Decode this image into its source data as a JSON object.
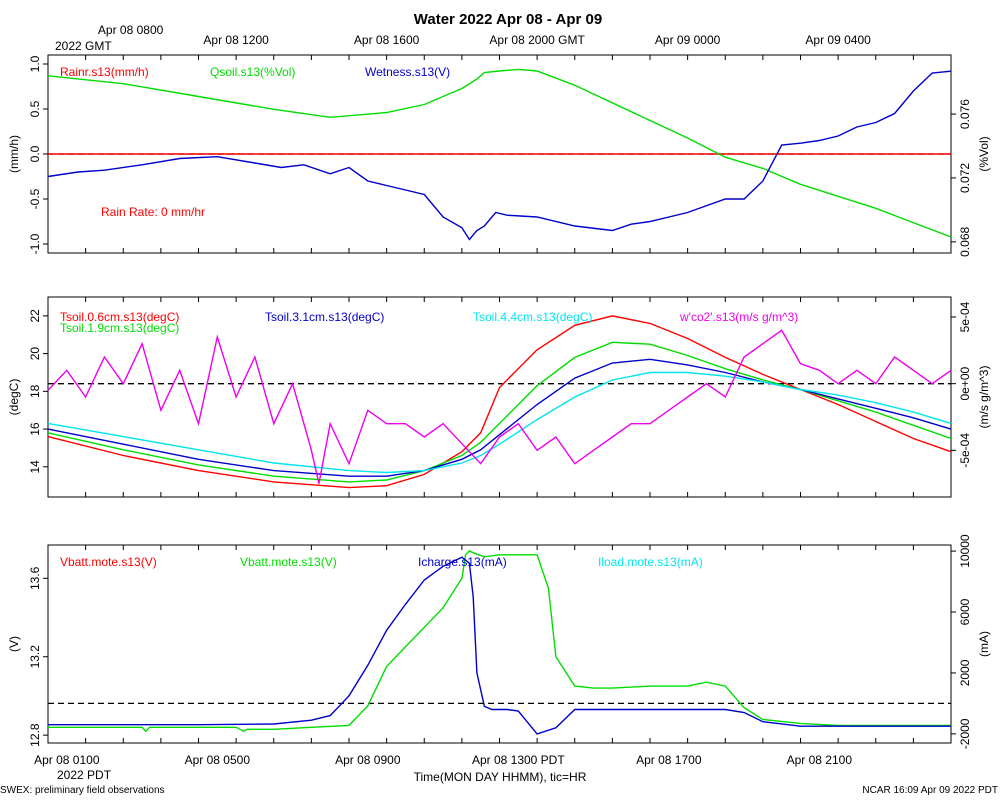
{
  "title": "Water 2022 Apr 08 - Apr 09",
  "top_time_labels": [
    "Apr 08 0800",
    "Apr 08 1200",
    "Apr 08 1600",
    "Apr 08 2000 GMT",
    "Apr 09 0000",
    "Apr 09 0400"
  ],
  "top_time_sub": "2022 GMT",
  "bottom_time_labels": [
    "Apr 08 0100",
    "Apr 08 0500",
    "Apr 08 0900",
    "Apr 08 1300 PDT",
    "Apr 08 1700",
    "Apr 08 2100"
  ],
  "bottom_time_sub": "2022 PDT",
  "xlabel": "Time(MON DAY HHMM), tic=HR",
  "footer_left": "SWEX: preliminary field observations",
  "footer_right": "NCAR 16:09 Apr 09 2022 PDT",
  "colors": {
    "red": "#ff0000",
    "green": "#00dd00",
    "blue": "#0000cc",
    "cyan": "#00e5ee",
    "magenta": "#ee00ee"
  },
  "chart_data": [
    {
      "type": "line",
      "panel": "water",
      "x_unit": "hours since Apr 08 0000 PDT",
      "xlim": [
        0,
        24
      ],
      "ylabel_left": "(mm/h)",
      "ylabel_right": "(%Vol)",
      "ylim_left": [
        -1.1,
        1.1
      ],
      "ylim_right": [
        0.0673,
        0.0797
      ],
      "yticks_left": [
        "1.0",
        "0.5",
        "0.0",
        "-0.5",
        "-1.0"
      ],
      "yticks_left_values": [
        1.0,
        0.5,
        0.0,
        -0.5,
        -1.0
      ],
      "yticks_right": [
        "0.076",
        "0.072",
        "0.068"
      ],
      "yticks_right_values": [
        0.076,
        0.072,
        0.068
      ],
      "annotation": "Rain Rate: 0 mm/hr",
      "series": [
        {
          "name": "Rainr.s13(mm/h)",
          "color": "red",
          "axis": "left",
          "x": [
            0,
            24
          ],
          "y": [
            0,
            0
          ]
        },
        {
          "name": "Qsoil.s13(%Vol)",
          "color": "green",
          "axis": "right",
          "x": [
            0,
            2,
            4,
            6,
            7.5,
            9,
            10,
            11,
            11.4,
            11.6,
            12,
            12.5,
            13,
            14,
            16,
            17,
            18,
            19,
            20,
            22,
            24
          ],
          "y": [
            0.0784,
            0.0779,
            0.0771,
            0.0763,
            0.0758,
            0.0761,
            0.0766,
            0.0776,
            0.0782,
            0.0786,
            0.0787,
            0.0788,
            0.0787,
            0.0778,
            0.0756,
            0.0745,
            0.0733,
            0.0726,
            0.0716,
            0.0701,
            0.0683
          ]
        },
        {
          "name": "Wetness.s13(V)",
          "color": "blue",
          "axis": "left",
          "x": [
            0,
            0.8,
            1.5,
            2.5,
            3.5,
            4.5,
            5.5,
            6.2,
            6.8,
            7.5,
            8,
            8.5,
            9,
            10,
            10.5,
            11,
            11.2,
            11.4,
            11.6,
            11.9,
            12.2,
            13,
            14,
            15,
            15.5,
            16,
            17,
            18,
            18.5,
            19,
            19.5,
            20,
            20.5,
            21,
            21.5,
            22,
            22.5,
            23,
            23.5,
            24
          ],
          "y": [
            -0.25,
            -0.2,
            -0.18,
            -0.12,
            -0.05,
            -0.03,
            -0.1,
            -0.15,
            -0.12,
            -0.22,
            -0.15,
            -0.3,
            -0.35,
            -0.45,
            -0.7,
            -0.82,
            -0.95,
            -0.85,
            -0.8,
            -0.65,
            -0.68,
            -0.7,
            -0.8,
            -0.85,
            -0.78,
            -0.75,
            -0.65,
            -0.5,
            -0.5,
            -0.3,
            0.1,
            0.12,
            0.15,
            0.2,
            0.3,
            0.35,
            0.45,
            0.7,
            0.9,
            0.92
          ]
        }
      ]
    },
    {
      "type": "line",
      "panel": "soil-temperature",
      "x_unit": "hours since Apr 08 0000 PDT",
      "xlim": [
        0,
        24
      ],
      "ylabel_left": "(degC)",
      "ylabel_right": "(m/s g/m^3)",
      "ylim_left": [
        12.4,
        23
      ],
      "ylim_right": [
        -0.00085,
        0.00065
      ],
      "yticks_left": [
        "22",
        "20",
        "18",
        "16",
        "14"
      ],
      "yticks_left_values": [
        22,
        20,
        18,
        16,
        14
      ],
      "yticks_right": [
        "5e-04",
        "0e+00",
        "-5e-04"
      ],
      "yticks_right_values": [
        0.0005,
        0,
        -0.0005
      ],
      "series": [
        {
          "name": "Tsoil.0.6cm.s13(degC)",
          "color": "red",
          "axis": "left",
          "x": [
            0,
            2,
            4,
            6,
            8,
            9,
            10,
            11,
            11.5,
            12,
            13,
            14,
            15,
            16,
            17,
            18,
            19,
            20,
            21,
            22,
            23,
            24
          ],
          "y": [
            15.6,
            14.6,
            13.8,
            13.2,
            12.9,
            13.0,
            13.6,
            14.8,
            15.8,
            18.2,
            20.2,
            21.5,
            22.0,
            21.6,
            20.8,
            19.8,
            18.9,
            18.1,
            17.3,
            16.4,
            15.5,
            14.8
          ]
        },
        {
          "name": "Tsoil.1.9cm.s13(degC)",
          "color": "green",
          "axis": "left",
          "x": [
            0,
            2,
            4,
            6,
            8,
            9,
            10,
            11,
            11.5,
            12,
            13,
            14,
            15,
            16,
            17,
            18,
            19,
            20,
            21,
            22,
            23,
            24
          ],
          "y": [
            15.8,
            14.9,
            14.1,
            13.5,
            13.2,
            13.3,
            13.8,
            14.6,
            15.3,
            16.3,
            18.3,
            19.8,
            20.6,
            20.5,
            19.9,
            19.2,
            18.6,
            18.1,
            17.5,
            16.9,
            16.2,
            15.5
          ]
        },
        {
          "name": "Tsoil.3.1cm.s13(degC)",
          "color": "blue",
          "axis": "left",
          "x": [
            0,
            2,
            4,
            6,
            8,
            9,
            10,
            11,
            11.5,
            12,
            13,
            14,
            15,
            16,
            17,
            18,
            19,
            20,
            21,
            22,
            23,
            24
          ],
          "y": [
            16.0,
            15.2,
            14.4,
            13.8,
            13.5,
            13.5,
            13.8,
            14.4,
            14.9,
            15.7,
            17.3,
            18.7,
            19.5,
            19.7,
            19.4,
            19.0,
            18.5,
            18.1,
            17.6,
            17.1,
            16.6,
            16.0
          ]
        },
        {
          "name": "Tsoil.4.4cm.s13(degC)",
          "color": "cyan",
          "axis": "left",
          "x": [
            0,
            2,
            4,
            6,
            8,
            9,
            10,
            11,
            11.5,
            12,
            13,
            14,
            15,
            16,
            17,
            18,
            19,
            20,
            21,
            22,
            23,
            24
          ],
          "y": [
            16.3,
            15.6,
            14.9,
            14.2,
            13.8,
            13.7,
            13.8,
            14.2,
            14.6,
            15.2,
            16.5,
            17.7,
            18.6,
            19.0,
            19.0,
            18.8,
            18.5,
            18.1,
            17.8,
            17.4,
            16.9,
            16.3
          ]
        },
        {
          "name": "w'co2'.s13(m/s g/m^3)",
          "color": "magenta",
          "axis": "right",
          "x": [
            0,
            0.5,
            1,
            1.5,
            2,
            2.5,
            3,
            3.5,
            4,
            4.5,
            5,
            5.5,
            6,
            6.5,
            7,
            7.2,
            7.5,
            8,
            8.5,
            9,
            9.5,
            10,
            10.5,
            11,
            11.5,
            12,
            12.5,
            13,
            13.5,
            14,
            14.5,
            15,
            15.5,
            16,
            16.5,
            17,
            17.5,
            18,
            18.5,
            19,
            19.5,
            20,
            20.5,
            21,
            21.5,
            22,
            22.5,
            23,
            23.5,
            24
          ],
          "y": [
            -5e-05,
            0.0001,
            -0.0001,
            0.0002,
            0.0,
            0.0003,
            -0.0002,
            0.0001,
            -0.0003,
            0.00035,
            -0.0001,
            0.0002,
            -0.0003,
            0.0,
            -0.0005,
            -0.00075,
            -0.0003,
            -0.0006,
            -0.0002,
            -0.0003,
            -0.0003,
            -0.0004,
            -0.0003,
            -0.00045,
            -0.0006,
            -0.0004,
            -0.0003,
            -0.0005,
            -0.0004,
            -0.0006,
            -0.0005,
            -0.0004,
            -0.0003,
            -0.0003,
            -0.0002,
            -0.0001,
            0.0,
            -0.0001,
            0.0002,
            0.0003,
            0.0004,
            0.00015,
            0.0001,
            0.0,
            0.0001,
            0.0,
            0.0002,
            0.0001,
            0.0,
            0.0001
          ]
        }
      ]
    },
    {
      "type": "line",
      "panel": "power",
      "x_unit": "hours since Apr 08 0000 PDT",
      "xlim": [
        0,
        24
      ],
      "ylabel_left": "(V)",
      "ylabel_right": "(mA)",
      "ylim_left": [
        12.76,
        13.77
      ],
      "ylim_right": [
        -2600,
        10400
      ],
      "yticks_left": [
        "13.6",
        "13.2",
        "12.8"
      ],
      "yticks_left_values": [
        13.6,
        13.2,
        12.8
      ],
      "yticks_right": [
        "10000",
        "6000",
        "2000",
        "-2000"
      ],
      "yticks_right_values": [
        10000,
        6000,
        2000,
        -2000
      ],
      "series": [
        {
          "name": "Vbatt.mote.s13(V)",
          "color": "red",
          "axis": "left",
          "x": [],
          "y": []
        },
        {
          "name": "Vbatt.mote.s13(V)",
          "color": "green",
          "axis": "left",
          "x": [
            0,
            2,
            2.5,
            2.6,
            2.7,
            4,
            5,
            5.2,
            5.3,
            6,
            7,
            8,
            8.5,
            9,
            9.5,
            10,
            10.5,
            11,
            11.1,
            11.2,
            11.3,
            11.6,
            12,
            12.5,
            13,
            13.3,
            13.5,
            14,
            14.5,
            15,
            16,
            17,
            17.5,
            18,
            18.5,
            19,
            20,
            21,
            22,
            23,
            24
          ],
          "y": [
            12.84,
            12.84,
            12.84,
            12.82,
            12.84,
            12.84,
            12.84,
            12.82,
            12.83,
            12.83,
            12.84,
            12.85,
            12.95,
            13.15,
            13.25,
            13.35,
            13.45,
            13.6,
            13.72,
            13.74,
            13.73,
            13.71,
            13.72,
            13.72,
            13.72,
            13.55,
            13.2,
            13.05,
            13.04,
            13.04,
            13.05,
            13.05,
            13.07,
            13.05,
            12.94,
            12.88,
            12.86,
            12.85,
            12.85,
            12.85,
            12.85
          ]
        },
        {
          "name": "Icharge.s13(mA)",
          "color": "blue",
          "axis": "right",
          "x": [
            0,
            2,
            4,
            6,
            7,
            7.5,
            8,
            8.5,
            9,
            9.5,
            10,
            10.5,
            11,
            11.2,
            11.3,
            11.4,
            11.6,
            11.8,
            12.2,
            12.5,
            13,
            13.5,
            14,
            15,
            16,
            17,
            18,
            18.5,
            19,
            20,
            22,
            24
          ],
          "y": [
            -1400,
            -1400,
            -1400,
            -1350,
            -1100,
            -800,
            500,
            2500,
            4800,
            6500,
            8100,
            9000,
            9600,
            9200,
            7000,
            2000,
            -200,
            -400,
            -400,
            -500,
            -2000,
            -1600,
            -400,
            -400,
            -400,
            -400,
            -400,
            -600,
            -1200,
            -1500,
            -1500,
            -1500
          ]
        },
        {
          "name": "Iload.mote.s13(mA)",
          "color": "cyan",
          "axis": "right",
          "x": [],
          "y": []
        }
      ]
    }
  ]
}
